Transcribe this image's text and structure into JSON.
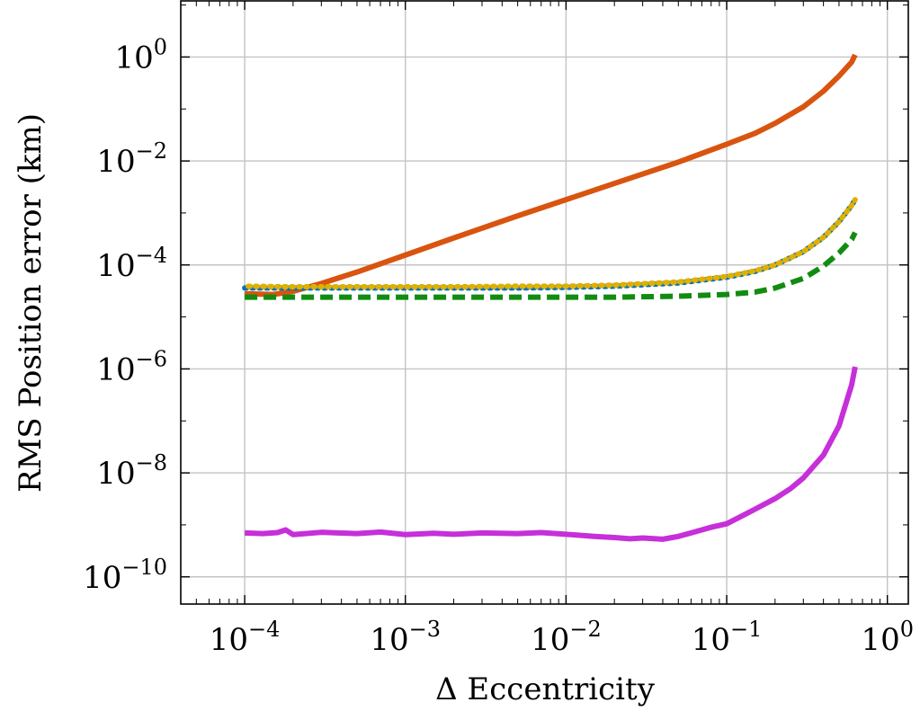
{
  "chart_data": {
    "type": "line",
    "xlabel": "Δ Eccentricity",
    "ylabel": "RMS Position error (km)",
    "xscale": "log",
    "yscale": "log",
    "xlim": [
      4e-05,
      1.35
    ],
    "ylim": [
      3e-11,
      12
    ],
    "grid": true,
    "xticks": [
      {
        "value": 0.0001,
        "base": "10",
        "exp": "−4"
      },
      {
        "value": 0.001,
        "base": "10",
        "exp": "−3"
      },
      {
        "value": 0.01,
        "base": "10",
        "exp": "−2"
      },
      {
        "value": 0.1,
        "base": "10",
        "exp": "−1"
      },
      {
        "value": 1,
        "base": "10",
        "exp": "0"
      }
    ],
    "yticks": [
      {
        "value": 1e-10,
        "base": "10",
        "exp": "−10"
      },
      {
        "value": 1e-08,
        "base": "10",
        "exp": "−8"
      },
      {
        "value": 1e-06,
        "base": "10",
        "exp": "−6"
      },
      {
        "value": 0.0001,
        "base": "10",
        "exp": "−4"
      },
      {
        "value": 0.01,
        "base": "10",
        "exp": "−2"
      },
      {
        "value": 1,
        "base": "10",
        "exp": "0"
      }
    ],
    "series": [
      {
        "color": "#d9540f",
        "dash": "solid",
        "x": [
          0.0001,
          0.00015,
          0.0002,
          0.0003,
          0.0005,
          0.001,
          0.002,
          0.005,
          0.01,
          0.02,
          0.05,
          0.1,
          0.15,
          0.2,
          0.3,
          0.4,
          0.5,
          0.6,
          0.63
        ],
        "y": [
          2.8e-05,
          2.7e-05,
          3.1e-05,
          4.4e-05,
          7.3e-05,
          0.000155,
          0.00033,
          0.00088,
          0.0018,
          0.0037,
          0.0095,
          0.021,
          0.034,
          0.053,
          0.11,
          0.22,
          0.43,
          0.8,
          1.1
        ]
      },
      {
        "color": "#0072bd",
        "dash": "dotted",
        "x": [
          0.0001,
          0.0002,
          0.0005,
          0.001,
          0.002,
          0.005,
          0.01,
          0.02,
          0.05,
          0.1,
          0.15,
          0.2,
          0.3,
          0.4,
          0.5,
          0.6,
          0.63
        ],
        "y": [
          3.6e-05,
          3.6e-05,
          3.6e-05,
          3.6e-05,
          3.6e-05,
          3.6e-05,
          3.7e-05,
          3.9e-05,
          4.5e-05,
          5.8e-05,
          7.5e-05,
          0.0001,
          0.00018,
          0.00034,
          0.00068,
          0.0014,
          0.0018
        ]
      },
      {
        "color": "#e0b000",
        "dash": "dotted",
        "x": [
          0.0001,
          0.0002,
          0.0005,
          0.001,
          0.002,
          0.005,
          0.01,
          0.02,
          0.05,
          0.1,
          0.15,
          0.2,
          0.3,
          0.4,
          0.5,
          0.6,
          0.63
        ],
        "y": [
          3.9e-05,
          3.8e-05,
          3.8e-05,
          3.8e-05,
          3.8e-05,
          3.9e-05,
          3.9e-05,
          4.1e-05,
          4.7e-05,
          6e-05,
          7.7e-05,
          0.0001,
          0.00018,
          0.00034,
          0.00068,
          0.0014,
          0.0018
        ]
      },
      {
        "color": "#118c11",
        "dash": "dashed",
        "x": [
          0.0001,
          0.0002,
          0.0005,
          0.001,
          0.002,
          0.005,
          0.01,
          0.02,
          0.05,
          0.1,
          0.15,
          0.2,
          0.3,
          0.4,
          0.5,
          0.6,
          0.63
        ],
        "y": [
          2.4e-05,
          2.4e-05,
          2.4e-05,
          2.4e-05,
          2.4e-05,
          2.4e-05,
          2.4e-05,
          2.4e-05,
          2.5e-05,
          2.7e-05,
          3e-05,
          3.6e-05,
          5.5e-05,
          9.5e-05,
          0.00017,
          0.00031,
          0.00042
        ]
      },
      {
        "color": "#c62fd9",
        "dash": "solid",
        "x": [
          0.0001,
          0.00013,
          0.00016,
          0.00018,
          0.0002,
          0.0003,
          0.0005,
          0.0007,
          0.001,
          0.0015,
          0.002,
          0.003,
          0.005,
          0.007,
          0.01,
          0.015,
          0.02,
          0.025,
          0.03,
          0.04,
          0.05,
          0.06,
          0.07,
          0.08,
          0.1,
          0.12,
          0.15,
          0.2,
          0.25,
          0.3,
          0.4,
          0.5,
          0.6,
          0.63
        ],
        "y": [
          7e-10,
          6.8e-10,
          7.1e-10,
          8e-10,
          6.5e-10,
          7.2e-10,
          6.8e-10,
          7.3e-10,
          6.5e-10,
          6.9e-10,
          6.6e-10,
          7e-10,
          6.8e-10,
          7.1e-10,
          6.6e-10,
          6e-10,
          5.7e-10,
          5.4e-10,
          5.6e-10,
          5.3e-10,
          6e-10,
          7e-10,
          8e-10,
          9e-10,
          1.05e-09,
          1.4e-09,
          2e-09,
          3.2e-09,
          5e-09,
          8e-09,
          2.2e-08,
          8e-08,
          5e-07,
          1.1e-06
        ]
      }
    ]
  }
}
